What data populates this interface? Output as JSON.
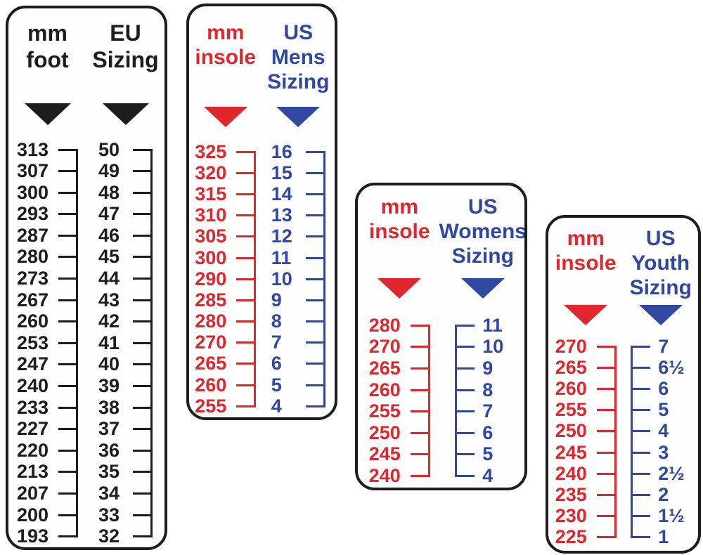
{
  "colors": {
    "black": "#1d1d1d",
    "red": "#e2262d",
    "blue": "#3048a2",
    "background": "#ffffff"
  },
  "panels": [
    {
      "id": "mm-foot-to-eu",
      "columns": [
        {
          "header": "mm\nfoot",
          "color": "black",
          "marker": "triangle-down",
          "bracket": "right",
          "values": [
            "313",
            "307",
            "300",
            "293",
            "287",
            "280",
            "273",
            "267",
            "260",
            "253",
            "247",
            "240",
            "233",
            "227",
            "220",
            "213",
            "207",
            "200",
            "193"
          ]
        },
        {
          "header": "EU\nSizing",
          "color": "black",
          "marker": "triangle-down",
          "bracket": "right",
          "values": [
            "50",
            "49",
            "48",
            "47",
            "46",
            "45",
            "44",
            "43",
            "42",
            "41",
            "40",
            "39",
            "38",
            "37",
            "36",
            "35",
            "34",
            "33",
            "32"
          ]
        }
      ]
    },
    {
      "id": "mm-insole-to-us-mens",
      "columns": [
        {
          "header": "mm\ninsole",
          "color": "red",
          "marker": "triangle-down",
          "bracket": "right",
          "values": [
            "325",
            "320",
            "315",
            "310",
            "305",
            "300",
            "290",
            "285",
            "280",
            "270",
            "265",
            "260",
            "255"
          ]
        },
        {
          "header": "US\nMens\nSizing",
          "color": "blue",
          "marker": "triangle-down",
          "bracket": "right",
          "values": [
            "16",
            "15",
            "14",
            "13",
            "12",
            "11",
            "10",
            "9",
            "8",
            "7",
            "6",
            "5",
            "4"
          ]
        }
      ]
    },
    {
      "id": "mm-insole-to-us-womens",
      "columns": [
        {
          "header": "mm\ninsole",
          "color": "red",
          "marker": "triangle-down",
          "bracket": "right",
          "values": [
            "280",
            "270",
            "265",
            "260",
            "255",
            "250",
            "245",
            "240"
          ]
        },
        {
          "header": "US\nWomens\nSizing",
          "color": "blue",
          "marker": "triangle-down",
          "bracket": "left",
          "values": [
            "11",
            "10",
            "9",
            "8",
            "7",
            "6",
            "5",
            "4"
          ]
        }
      ]
    },
    {
      "id": "mm-insole-to-us-youth",
      "columns": [
        {
          "header": "mm\ninsole",
          "color": "red",
          "marker": "triangle-down",
          "bracket": "right",
          "values": [
            "270",
            "265",
            "260",
            "255",
            "250",
            "245",
            "240",
            "235",
            "230",
            "225"
          ]
        },
        {
          "header": "US\nYouth\nSizing",
          "color": "blue",
          "marker": "triangle-down",
          "bracket": "left",
          "values": [
            "7",
            "6½",
            "6",
            "5",
            "4",
            "3",
            "2½",
            "2",
            "1½",
            "1"
          ]
        }
      ]
    }
  ],
  "chart_data": [
    {
      "type": "table",
      "title": "mm foot to EU Sizing",
      "columns": [
        "mm foot",
        "EU Sizing"
      ],
      "rows": [
        [
          313,
          50
        ],
        [
          307,
          49
        ],
        [
          300,
          48
        ],
        [
          293,
          47
        ],
        [
          287,
          46
        ],
        [
          280,
          45
        ],
        [
          273,
          44
        ],
        [
          267,
          43
        ],
        [
          260,
          42
        ],
        [
          253,
          41
        ],
        [
          247,
          40
        ],
        [
          240,
          39
        ],
        [
          233,
          38
        ],
        [
          227,
          37
        ],
        [
          220,
          36
        ],
        [
          213,
          35
        ],
        [
          207,
          34
        ],
        [
          200,
          33
        ],
        [
          193,
          32
        ]
      ]
    },
    {
      "type": "table",
      "title": "mm insole to US Mens Sizing",
      "columns": [
        "mm insole",
        "US Mens Sizing"
      ],
      "rows": [
        [
          325,
          16
        ],
        [
          320,
          15
        ],
        [
          315,
          14
        ],
        [
          310,
          13
        ],
        [
          305,
          12
        ],
        [
          300,
          11
        ],
        [
          290,
          10
        ],
        [
          285,
          9
        ],
        [
          280,
          8
        ],
        [
          270,
          7
        ],
        [
          265,
          6
        ],
        [
          260,
          5
        ],
        [
          255,
          4
        ]
      ]
    },
    {
      "type": "table",
      "title": "mm insole to US Womens Sizing",
      "columns": [
        "mm insole",
        "US Womens Sizing"
      ],
      "rows": [
        [
          280,
          11
        ],
        [
          270,
          10
        ],
        [
          265,
          9
        ],
        [
          260,
          8
        ],
        [
          255,
          7
        ],
        [
          250,
          6
        ],
        [
          245,
          5
        ],
        [
          240,
          4
        ]
      ]
    },
    {
      "type": "table",
      "title": "mm insole to US Youth Sizing",
      "columns": [
        "mm insole",
        "US Youth Sizing"
      ],
      "rows": [
        [
          270,
          "7"
        ],
        [
          265,
          "6½"
        ],
        [
          260,
          "6"
        ],
        [
          255,
          "5"
        ],
        [
          250,
          "4"
        ],
        [
          245,
          "3"
        ],
        [
          240,
          "2½"
        ],
        [
          235,
          "2"
        ],
        [
          230,
          "1½"
        ],
        [
          225,
          "1"
        ]
      ]
    }
  ]
}
